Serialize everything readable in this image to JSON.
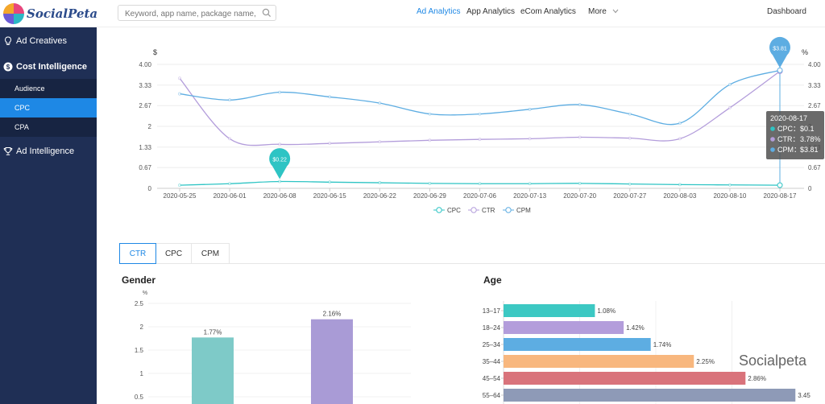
{
  "header": {
    "logo_text": "SocialPeta",
    "search_placeholder": "Keyword, app name, package name, text c",
    "nav": [
      "Ad Analytics",
      "App Analytics",
      "eCom Analytics",
      "More"
    ],
    "dashboard": "Dashboard"
  },
  "sidebar": {
    "items": [
      {
        "label": "Ad Creatives",
        "icon": "lightbulb-icon"
      },
      {
        "label": "Cost Intelligence",
        "icon": "dollar-circle-icon"
      },
      {
        "label": "Ad Intelligence",
        "icon": "trophy-icon"
      }
    ],
    "sub_items": [
      "Audience",
      "CPC",
      "CPA"
    ],
    "active_sub": "CPC"
  },
  "tabs": [
    "CTR",
    "CPC",
    "CPM"
  ],
  "active_tab": "CTR",
  "sections": {
    "gender_title": "Gender",
    "age_title": "Age"
  },
  "watermark": "Socialpeta",
  "chart_data": [
    {
      "type": "line",
      "left_unit": "$",
      "right_unit": "%",
      "y_ticks": [
        "0",
        "0.67",
        "1.33",
        "2",
        "2.67",
        "3.33",
        "4.00"
      ],
      "ylim": [
        0,
        4
      ],
      "x_ticks": [
        "2020-05-25",
        "2020-06-01",
        "2020-06-08",
        "2020-06-15",
        "2020-06-22",
        "2020-06-29",
        "2020-07-06",
        "2020-07-13",
        "2020-07-20",
        "2020-07-27",
        "2020-08-03",
        "2020-08-10",
        "2020-08-17"
      ],
      "series": [
        {
          "name": "CPC",
          "color": "#2ec4c4",
          "values": [
            0.1,
            0.15,
            0.22,
            0.2,
            0.18,
            0.16,
            0.15,
            0.15,
            0.16,
            0.14,
            0.12,
            0.11,
            0.1
          ]
        },
        {
          "name": "CTR",
          "color": "#b39ddb",
          "values": [
            3.55,
            1.6,
            1.42,
            1.45,
            1.5,
            1.55,
            1.58,
            1.6,
            1.65,
            1.62,
            1.6,
            2.6,
            3.78
          ]
        },
        {
          "name": "CPM",
          "color": "#5dade2",
          "values": [
            3.05,
            2.85,
            3.1,
            2.95,
            2.75,
            2.4,
            2.4,
            2.55,
            2.7,
            2.4,
            2.1,
            3.35,
            3.81
          ]
        }
      ],
      "markers": [
        {
          "label": "$0.22",
          "series": "CPC",
          "x_index": 2,
          "color": "#2ec4c4"
        },
        {
          "label": "$3.81",
          "series": "CPM",
          "x_index": 12,
          "color": "#5dade2"
        }
      ],
      "tooltip": {
        "title": "2020-08-17",
        "rows": [
          {
            "name": "CPC：",
            "value": "$0.1",
            "color": "#2ec4c4"
          },
          {
            "name": "CTR：",
            "value": "3.78%",
            "color": "#b39ddb"
          },
          {
            "name": "CPM：",
            "value": "$3.81",
            "color": "#5dade2"
          }
        ]
      },
      "legend": "bottom-center",
      "grid": true
    },
    {
      "type": "bar",
      "title": "Gender",
      "ylabel": "%",
      "y_ticks": [
        "0.5",
        "1",
        "1.5",
        "2",
        "2.5"
      ],
      "ylim": [
        0,
        2.5
      ],
      "series": [
        {
          "value": 1.77,
          "label": "1.77%",
          "color": "#7ecac8"
        },
        {
          "value": 2.16,
          "label": "2.16%",
          "color": "#a99bd6"
        }
      ]
    },
    {
      "type": "bar",
      "orientation": "horizontal",
      "title": "Age",
      "categories": [
        "13–17",
        "18–24",
        "25–34",
        "35–44",
        "45–54",
        "55–64"
      ],
      "values": [
        1.08,
        1.42,
        1.74,
        2.25,
        2.86,
        3.45
      ],
      "labels": [
        "1.08%",
        "1.42%",
        "1.74%",
        "2.25%",
        "2.86%",
        "3.45"
      ],
      "colors": [
        "#3cc8c3",
        "#b39ddb",
        "#5dade2",
        "#f8b77e",
        "#d9737b",
        "#8e9ab7"
      ]
    }
  ]
}
